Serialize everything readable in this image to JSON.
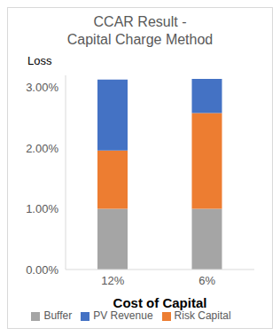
{
  "chart_data": {
    "type": "bar",
    "title": "CCAR Result - Capital Charge Method",
    "y_label": "Loss",
    "x_label": "Cost of Capital",
    "categories": [
      "12%",
      "6%"
    ],
    "stacked": true,
    "series": [
      {
        "name": "Buffer",
        "color": "#a5a5a5",
        "values": [
          1.0,
          1.0
        ]
      },
      {
        "name": "Risk Capital",
        "color": "#ed7d31",
        "values": [
          0.96,
          1.58
        ]
      },
      {
        "name": "PV Revenue",
        "color": "#4472c4",
        "values": [
          1.17,
          0.56
        ]
      }
    ],
    "ylim": [
      0,
      3.2
    ],
    "yticks": [
      {
        "value": 0,
        "label": "0.00%"
      },
      {
        "value": 1,
        "label": "1.00%"
      },
      {
        "value": 2,
        "label": "2.00%"
      },
      {
        "value": 3,
        "label": "3.00%"
      }
    ],
    "grid": false,
    "legend": "bottom"
  }
}
